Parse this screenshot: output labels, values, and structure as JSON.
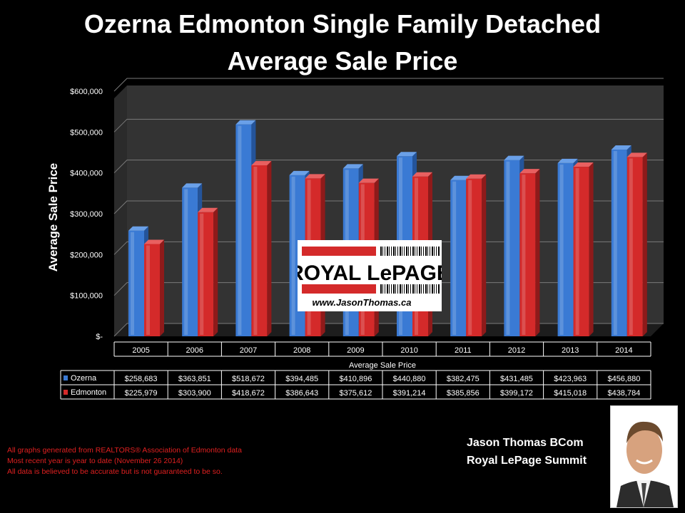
{
  "title_line1": "Ozerna Edmonton Single Family Detached",
  "title_line2": "Average Sale Price",
  "notes": [
    "All graphs generated from REALTORS® Association of Edmonton data",
    "Most recent year is year to date (November 26 2014)",
    "All data is believed to be accurate but is not guaranteed to be so."
  ],
  "agent": {
    "name": "Jason Thomas BCom",
    "brokerage": "Royal LePage Summit"
  },
  "logo": {
    "brand": "ROYAL LePAGE",
    "url": "www.JasonThomas.ca"
  },
  "colors": {
    "ozerna": "#3a7ad4",
    "edmonton": "#d42a2a",
    "notes": "#e02020"
  },
  "chart_data": {
    "type": "bar",
    "title": "Ozerna Edmonton Single Family Detached Average Sale Price",
    "xlabel": "Average Sale Price",
    "ylabel": "Average Sale Price",
    "ylim": [
      0,
      600000
    ],
    "yticks": [
      0,
      100000,
      200000,
      300000,
      400000,
      500000,
      600000
    ],
    "ytick_labels": [
      "$-",
      "$100,000",
      "$200,000",
      "$300,000",
      "$400,000",
      "$500,000",
      "$600,000"
    ],
    "grid": true,
    "legend": "data-table",
    "categories": [
      "2005",
      "2006",
      "2007",
      "2008",
      "2009",
      "2010",
      "2011",
      "2012",
      "2013",
      "2014"
    ],
    "series": [
      {
        "name": "Ozerna",
        "values": [
          258683,
          363851,
          518672,
          394485,
          410896,
          440880,
          382475,
          431485,
          423963,
          456880
        ],
        "labels": [
          "$258,683",
          "$363,851",
          "$518,672",
          "$394,485",
          "$410,896",
          "$440,880",
          "$382,475",
          "$431,485",
          "$423,963",
          "$456,880"
        ]
      },
      {
        "name": "Edmonton",
        "values": [
          225979,
          303900,
          418672,
          386643,
          375612,
          391214,
          385856,
          399172,
          415018,
          438784
        ],
        "labels": [
          "$225,979",
          "$303,900",
          "$418,672",
          "$386,643",
          "$375,612",
          "$391,214",
          "$385,856",
          "$399,172",
          "$415,018",
          "$438,784"
        ]
      }
    ]
  }
}
